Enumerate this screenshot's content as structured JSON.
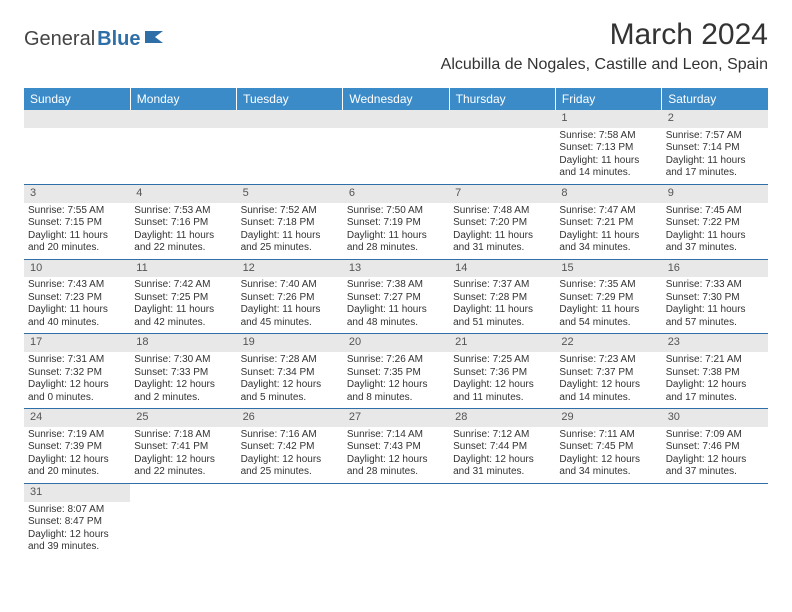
{
  "logo": {
    "part1": "General",
    "part2": "Blue"
  },
  "title": "March 2024",
  "location": "Alcubilla de Nogales, Castille and Leon, Spain",
  "weekdays": [
    "Sunday",
    "Monday",
    "Tuesday",
    "Wednesday",
    "Thursday",
    "Friday",
    "Saturday"
  ],
  "colors": {
    "header_bg": "#3b8bc9",
    "header_fg": "#ffffff",
    "daynum_bg": "#e8e8e8",
    "row_divider": "#2f6fa8",
    "logo_accent": "#2f6fa8"
  },
  "layout": {
    "first_weekday_index": 5,
    "days_in_month": 31
  },
  "days": {
    "1": {
      "sunrise": "7:58 AM",
      "sunset": "7:13 PM",
      "daylight": "11 hours and 14 minutes."
    },
    "2": {
      "sunrise": "7:57 AM",
      "sunset": "7:14 PM",
      "daylight": "11 hours and 17 minutes."
    },
    "3": {
      "sunrise": "7:55 AM",
      "sunset": "7:15 PM",
      "daylight": "11 hours and 20 minutes."
    },
    "4": {
      "sunrise": "7:53 AM",
      "sunset": "7:16 PM",
      "daylight": "11 hours and 22 minutes."
    },
    "5": {
      "sunrise": "7:52 AM",
      "sunset": "7:18 PM",
      "daylight": "11 hours and 25 minutes."
    },
    "6": {
      "sunrise": "7:50 AM",
      "sunset": "7:19 PM",
      "daylight": "11 hours and 28 minutes."
    },
    "7": {
      "sunrise": "7:48 AM",
      "sunset": "7:20 PM",
      "daylight": "11 hours and 31 minutes."
    },
    "8": {
      "sunrise": "7:47 AM",
      "sunset": "7:21 PM",
      "daylight": "11 hours and 34 minutes."
    },
    "9": {
      "sunrise": "7:45 AM",
      "sunset": "7:22 PM",
      "daylight": "11 hours and 37 minutes."
    },
    "10": {
      "sunrise": "7:43 AM",
      "sunset": "7:23 PM",
      "daylight": "11 hours and 40 minutes."
    },
    "11": {
      "sunrise": "7:42 AM",
      "sunset": "7:25 PM",
      "daylight": "11 hours and 42 minutes."
    },
    "12": {
      "sunrise": "7:40 AM",
      "sunset": "7:26 PM",
      "daylight": "11 hours and 45 minutes."
    },
    "13": {
      "sunrise": "7:38 AM",
      "sunset": "7:27 PM",
      "daylight": "11 hours and 48 minutes."
    },
    "14": {
      "sunrise": "7:37 AM",
      "sunset": "7:28 PM",
      "daylight": "11 hours and 51 minutes."
    },
    "15": {
      "sunrise": "7:35 AM",
      "sunset": "7:29 PM",
      "daylight": "11 hours and 54 minutes."
    },
    "16": {
      "sunrise": "7:33 AM",
      "sunset": "7:30 PM",
      "daylight": "11 hours and 57 minutes."
    },
    "17": {
      "sunrise": "7:31 AM",
      "sunset": "7:32 PM",
      "daylight": "12 hours and 0 minutes."
    },
    "18": {
      "sunrise": "7:30 AM",
      "sunset": "7:33 PM",
      "daylight": "12 hours and 2 minutes."
    },
    "19": {
      "sunrise": "7:28 AM",
      "sunset": "7:34 PM",
      "daylight": "12 hours and 5 minutes."
    },
    "20": {
      "sunrise": "7:26 AM",
      "sunset": "7:35 PM",
      "daylight": "12 hours and 8 minutes."
    },
    "21": {
      "sunrise": "7:25 AM",
      "sunset": "7:36 PM",
      "daylight": "12 hours and 11 minutes."
    },
    "22": {
      "sunrise": "7:23 AM",
      "sunset": "7:37 PM",
      "daylight": "12 hours and 14 minutes."
    },
    "23": {
      "sunrise": "7:21 AM",
      "sunset": "7:38 PM",
      "daylight": "12 hours and 17 minutes."
    },
    "24": {
      "sunrise": "7:19 AM",
      "sunset": "7:39 PM",
      "daylight": "12 hours and 20 minutes."
    },
    "25": {
      "sunrise": "7:18 AM",
      "sunset": "7:41 PM",
      "daylight": "12 hours and 22 minutes."
    },
    "26": {
      "sunrise": "7:16 AM",
      "sunset": "7:42 PM",
      "daylight": "12 hours and 25 minutes."
    },
    "27": {
      "sunrise": "7:14 AM",
      "sunset": "7:43 PM",
      "daylight": "12 hours and 28 minutes."
    },
    "28": {
      "sunrise": "7:12 AM",
      "sunset": "7:44 PM",
      "daylight": "12 hours and 31 minutes."
    },
    "29": {
      "sunrise": "7:11 AM",
      "sunset": "7:45 PM",
      "daylight": "12 hours and 34 minutes."
    },
    "30": {
      "sunrise": "7:09 AM",
      "sunset": "7:46 PM",
      "daylight": "12 hours and 37 minutes."
    },
    "31": {
      "sunrise": "8:07 AM",
      "sunset": "8:47 PM",
      "daylight": "12 hours and 39 minutes."
    }
  },
  "labels": {
    "sunrise": "Sunrise: ",
    "sunset": "Sunset: ",
    "daylight": "Daylight: "
  }
}
